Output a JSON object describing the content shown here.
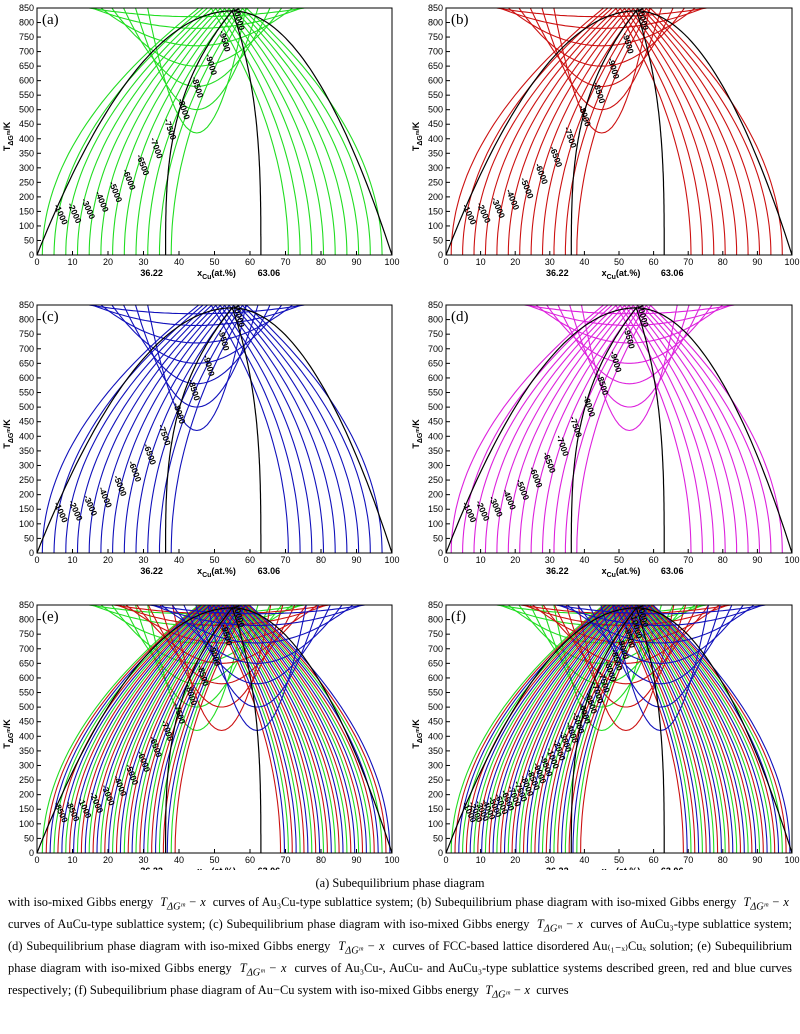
{
  "figure": {
    "xlabel": "x",
    "xlabel_sub": "Cu",
    "xlabel_tail": "(at.%)",
    "ylabel": "T",
    "ylabel_sub": "ΔG",
    "ylabel_subsub": "m",
    "ylabel_tail": "/K",
    "x_extra_ticks": [
      "36.22",
      "63.06"
    ]
  },
  "colors": {
    "green": "#22dd22",
    "red": "#cc1111",
    "blue": "#1111bb",
    "magenta": "#dd22dd",
    "boundary": "#000000"
  },
  "chart_data": [
    {
      "panel": "(a)",
      "type": "line",
      "series_colors": [
        "green"
      ],
      "xlim": [
        0,
        100
      ],
      "ylim": [
        0,
        850
      ],
      "xticks": [
        0,
        10,
        20,
        30,
        40,
        50,
        60,
        70,
        80,
        90,
        100
      ],
      "yticks": [
        0,
        50,
        100,
        150,
        200,
        250,
        300,
        350,
        400,
        450,
        500,
        550,
        600,
        650,
        700,
        750,
        800,
        850
      ],
      "spinodal_peak": [
        55,
        840
      ],
      "miscibility_gap": {
        "left_base": 36.22,
        "right_base": 63.06
      },
      "contour_labels": [
        "-10000",
        "-9500",
        "-9000",
        "-8500",
        "-8000",
        "-7500",
        "-7000",
        "-6500",
        "-6000",
        "-5000",
        "-4000",
        "-3000",
        "-2000",
        "-1000"
      ]
    },
    {
      "panel": "(b)",
      "type": "line",
      "series_colors": [
        "red"
      ],
      "xlim": [
        0,
        100
      ],
      "ylim": [
        0,
        850
      ],
      "xticks": [
        0,
        10,
        20,
        30,
        40,
        50,
        60,
        70,
        80,
        90,
        100
      ],
      "yticks": [
        0,
        50,
        100,
        150,
        200,
        250,
        300,
        350,
        400,
        450,
        500,
        550,
        600,
        650,
        700,
        750,
        800,
        850
      ],
      "spinodal_peak": [
        55,
        840
      ],
      "miscibility_gap": {
        "left_base": 36.22,
        "right_base": 63.06
      },
      "contour_labels": [
        "-10000",
        "-9500",
        "-9000",
        "-8500",
        "-8000",
        "-7500",
        "-6500",
        "-6000",
        "-5000",
        "-4000",
        "-3000",
        "-2000",
        "-1000"
      ]
    },
    {
      "panel": "(c)",
      "type": "line",
      "series_colors": [
        "blue"
      ],
      "xlim": [
        0,
        100
      ],
      "ylim": [
        0,
        850
      ],
      "xticks": [
        0,
        10,
        20,
        30,
        40,
        50,
        60,
        70,
        80,
        90,
        100
      ],
      "yticks": [
        0,
        50,
        100,
        150,
        200,
        250,
        300,
        350,
        400,
        450,
        500,
        550,
        600,
        650,
        700,
        750,
        800,
        850
      ],
      "spinodal_peak": [
        55,
        840
      ],
      "miscibility_gap": {
        "left_base": 36.22,
        "right_base": 63.06
      },
      "contour_labels": [
        "-10000",
        "-9500",
        "-9000",
        "-8500",
        "-8000",
        "-7500",
        "-6500",
        "-6000",
        "-5000",
        "-4000",
        "-3000",
        "-2000",
        "-1000"
      ]
    },
    {
      "panel": "(d)",
      "type": "line",
      "series_colors": [
        "magenta"
      ],
      "xlim": [
        0,
        100
      ],
      "ylim": [
        0,
        850
      ],
      "xticks": [
        0,
        10,
        20,
        30,
        40,
        50,
        60,
        70,
        80,
        90,
        100
      ],
      "yticks": [
        0,
        50,
        100,
        150,
        200,
        250,
        300,
        350,
        400,
        450,
        500,
        550,
        600,
        650,
        700,
        750,
        800,
        850
      ],
      "spinodal_peak": [
        55,
        840
      ],
      "miscibility_gap": {
        "left_base": 36.22,
        "right_base": 63.06
      },
      "contour_labels": [
        "-10000",
        "-9500",
        "-9000",
        "-8500",
        "-8000",
        "-7500",
        "-7000",
        "-6500",
        "-6000",
        "-5000",
        "-4000",
        "-3000",
        "-2000",
        "-1000"
      ]
    },
    {
      "panel": "(e)",
      "type": "line",
      "series_colors": [
        "green",
        "red",
        "blue"
      ],
      "xlim": [
        0,
        100
      ],
      "ylim": [
        0,
        850
      ],
      "xticks": [
        0,
        10,
        20,
        30,
        40,
        50,
        60,
        70,
        80,
        90,
        100
      ],
      "yticks": [
        0,
        50,
        100,
        150,
        200,
        250,
        300,
        350,
        400,
        450,
        500,
        550,
        600,
        650,
        700,
        750,
        800,
        850
      ],
      "spinodal_peak": [
        55,
        840
      ],
      "miscibility_gap": {
        "left_base": 36.22,
        "right_base": 63.06
      },
      "contour_labels": [
        "-10000",
        "-9500",
        "-9000",
        "-8500",
        "-8000",
        "-7500",
        "-7000",
        "-6500",
        "-6000",
        "-5000",
        "-4000",
        "-3000",
        "-2000",
        "-1000",
        "-8500",
        "-8500"
      ]
    },
    {
      "panel": "(f)",
      "type": "line",
      "series_colors": [
        "green",
        "red",
        "blue"
      ],
      "xlim": [
        0,
        100
      ],
      "ylim": [
        0,
        850
      ],
      "xticks": [
        0,
        10,
        20,
        30,
        40,
        50,
        60,
        70,
        80,
        90,
        100
      ],
      "yticks": [
        0,
        50,
        100,
        150,
        200,
        250,
        300,
        350,
        400,
        450,
        500,
        550,
        600,
        650,
        700,
        750,
        800,
        850
      ],
      "spinodal_peak": [
        55,
        840
      ],
      "miscibility_gap": {
        "left_base": 36.22,
        "right_base": 63.06
      },
      "contour_labels": [
        "-10000",
        "-10000",
        "-9500",
        "-9000",
        "-8500",
        "-8000",
        "-7500",
        "-7000",
        "-6500",
        "-6000",
        "-5000",
        "-4000",
        "-3000",
        "-2000",
        "-1000",
        "-9500",
        "-9000",
        "-8500",
        "-8000",
        "-7500",
        "-7000",
        "-6500",
        "-6000",
        "-5000",
        "-4000",
        "-3000",
        "-2000",
        "-1000"
      ]
    }
  ],
  "caption": {
    "first": "(a) Subequilibrium phase diagram",
    "p_a": "with iso-mixed Gibbs energy",
    "p_b": "curves of Au₃Cu-type sublattice system; (b) Subequilibrium phase diagram with iso-mixed Gibbs energy",
    "p_c": "curves of AuCu-type sublattice system; (c) Subequilibrium phase diagram with iso-mixed Gibbs energy",
    "p_d": "curves of AuCu₃-type sublattice system; (d) Subequilibrium phase diagram with iso-mixed Gibbs energy",
    "p_e": "curves of FCC-based lattice disordered Au₍₁₋ₓ₎Cuₓ solution; (e) Subequilibrium phase diagram with iso-mixed Gibbs energy",
    "p_f": "curves of Au₃Cu-, AuCu- and AuCu₃-type sublattice systems described green, red and blue curves respectively; (f) Subequilibrium phase diagram of Au−Cu system with iso-mixed Gibbs energy",
    "p_g": "curves",
    "math": "T",
    "math_sub": "ΔGᵐ",
    "math_tail": " − x"
  }
}
